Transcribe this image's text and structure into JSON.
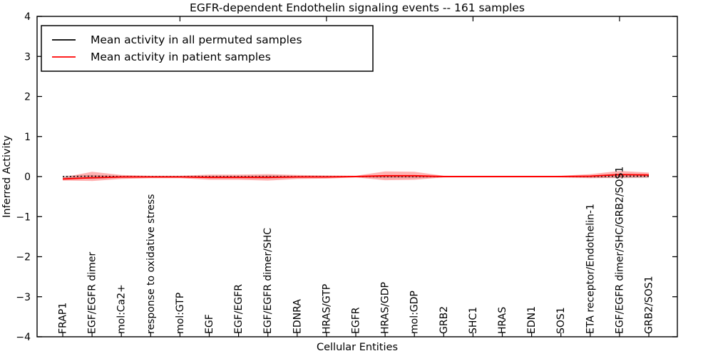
{
  "chart_data": {
    "type": "line",
    "title": "EGFR-dependent Endothelin signaling events -- 161 samples",
    "xlabel": "Cellular Entities",
    "ylabel": "Inferred Activity",
    "ylim": [
      -4,
      4
    ],
    "yticks": [
      -4,
      -3,
      -2,
      -1,
      0,
      1,
      2,
      3,
      4
    ],
    "ytick_labels": [
      "−4",
      "−3",
      "−2",
      "−1",
      "0",
      "1",
      "2",
      "3",
      "4"
    ],
    "grid": false,
    "legend_position": "upper left",
    "categories": [
      "FRAP1",
      "EGF/EGFR dimer",
      "mol:Ca2+",
      "response to oxidative stress",
      "mol:GTP",
      "EGF",
      "EGF/EGFR",
      "EGF/EGFR dimer/SHC",
      "EDNRA",
      "HRAS/GTP",
      "EGFR",
      "HRAS/GDP",
      "mol:GDP",
      "GRB2",
      "SHC1",
      "HRAS",
      "EDN1",
      "SOS1",
      "ETA receptor/Endothelin-1",
      "EGF/EGFR dimer/SHC/GRB2/SOS1",
      "GRB2/SOS1"
    ],
    "series": [
      {
        "name": "Mean activity in all permuted samples",
        "color": "#000000",
        "line_style": "dotted",
        "values": [
          0,
          0.01,
          0,
          0,
          0,
          0,
          0,
          0,
          0,
          0,
          0,
          0,
          0,
          0,
          0,
          0,
          0,
          0,
          0,
          0.01,
          0.01
        ],
        "band_upper": [
          0.02,
          0.04,
          0.02,
          0.02,
          0.02,
          0.02,
          0.02,
          0.03,
          0.02,
          0.02,
          0.02,
          0.03,
          0.03,
          0.02,
          0.02,
          0.02,
          0.02,
          0.02,
          0.02,
          0.04,
          0.04
        ],
        "band_lower": [
          -0.04,
          -0.06,
          -0.03,
          -0.02,
          -0.02,
          -0.04,
          -0.04,
          -0.05,
          -0.03,
          -0.02,
          -0.02,
          -0.04,
          -0.04,
          -0.02,
          -0.02,
          -0.02,
          -0.02,
          -0.02,
          -0.03,
          -0.04,
          -0.03
        ],
        "band_color": "#999999",
        "band_opacity": 0.45
      },
      {
        "name": "Mean activity in patient samples",
        "color": "#ff0000",
        "line_style": "solid",
        "values": [
          -0.06,
          -0.03,
          -0.01,
          -0.01,
          -0.01,
          -0.02,
          -0.02,
          -0.02,
          -0.01,
          -0.01,
          0,
          0.02,
          0.02,
          0,
          0,
          0,
          0,
          0,
          0.01,
          0.05,
          0.04
        ],
        "band_upper": [
          -0.02,
          0.12,
          0.04,
          0.02,
          0.02,
          0.05,
          0.05,
          0.06,
          0.04,
          0.03,
          0.02,
          0.13,
          0.12,
          0.02,
          0.01,
          0.01,
          0.01,
          0.02,
          0.06,
          0.14,
          0.1
        ],
        "band_lower": [
          -0.1,
          -0.11,
          -0.06,
          -0.04,
          -0.04,
          -0.08,
          -0.08,
          -0.1,
          -0.06,
          -0.05,
          -0.02,
          -0.09,
          -0.08,
          -0.02,
          -0.01,
          -0.01,
          -0.01,
          -0.02,
          -0.04,
          -0.03,
          -0.02
        ],
        "band_color": "#ff0000",
        "band_opacity": 0.3
      }
    ]
  }
}
